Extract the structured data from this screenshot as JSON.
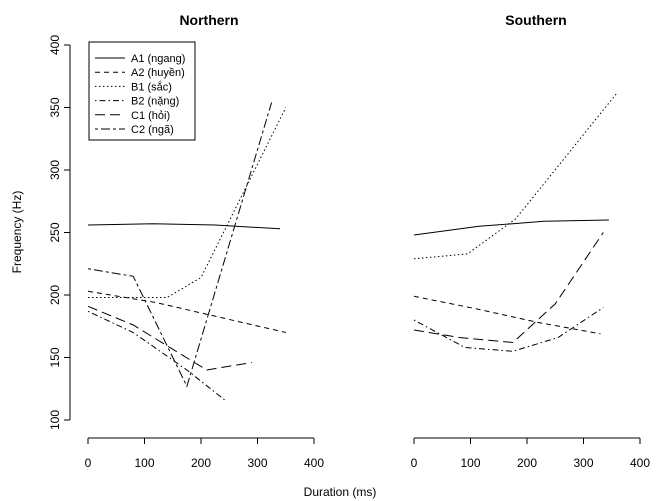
{
  "chart_data": {
    "type": "line",
    "xlabel": "Duration (ms)",
    "ylabel": "Frequency (Hz)",
    "xlim": [
      0,
      400
    ],
    "ylim": [
      100,
      400
    ],
    "xticks": [
      "0",
      "100",
      "200",
      "300",
      "400"
    ],
    "yticks": [
      "100",
      "150",
      "200",
      "250",
      "300",
      "350",
      "400"
    ],
    "grid": false,
    "legend_location": "top-left of first panel",
    "legend": [
      {
        "label": "A1 (ngang)",
        "dash": "solid"
      },
      {
        "label": "A2 (huyền)",
        "dash": "dashed"
      },
      {
        "label": "B1 (sắc)",
        "dash": "dotted"
      },
      {
        "label": "B2 (nặng)",
        "dash": "dotdash"
      },
      {
        "label": "C1 (hỏi)",
        "dash": "longdash"
      },
      {
        "label": "C2 (ngã)",
        "dash": "twodash"
      }
    ],
    "panels": [
      {
        "title": "Northern",
        "series": [
          {
            "name": "A1 (ngang)",
            "dash": "solid",
            "points": [
              [
                0,
                256
              ],
              [
                115,
                257
              ],
              [
                225,
                256
              ],
              [
                340,
                253
              ]
            ]
          },
          {
            "name": "A2 (huyền)",
            "dash": "dashed",
            "points": [
              [
                0,
                203
              ],
              [
                120,
                194
              ],
              [
                235,
                182
              ],
              [
                350,
                170
              ]
            ]
          },
          {
            "name": "B1 (sắc)",
            "dash": "dotted",
            "points": [
              [
                0,
                198
              ],
              [
                140,
                198
              ],
              [
                200,
                214
              ],
              [
                350,
                350
              ]
            ]
          },
          {
            "name": "B2 (nặng)",
            "dash": "dotdash",
            "points": [
              [
                0,
                187
              ],
              [
                80,
                170
              ],
              [
                175,
                140
              ],
              [
                245,
                115
              ]
            ]
          },
          {
            "name": "C1 (hỏi)",
            "dash": "longdash",
            "points": [
              [
                0,
                191
              ],
              [
                80,
                176
              ],
              [
                210,
                140
              ],
              [
                290,
                146
              ]
            ]
          },
          {
            "name": "C2 (ngã)",
            "dash": "twodash",
            "points": [
              [
                0,
                221
              ],
              [
                80,
                215
              ],
              [
                175,
                127
              ],
              [
                325,
                354
              ]
            ]
          }
        ]
      },
      {
        "title": "Southern",
        "series": [
          {
            "name": "A1 (ngang)",
            "dash": "solid",
            "points": [
              [
                0,
                248
              ],
              [
                115,
                255
              ],
              [
                230,
                259
              ],
              [
                345,
                260
              ]
            ]
          },
          {
            "name": "A2 (huyền)",
            "dash": "dashed",
            "points": [
              [
                0,
                199
              ],
              [
                110,
                189
              ],
              [
                220,
                178
              ],
              [
                330,
                169
              ]
            ]
          },
          {
            "name": "B1 (sắc)",
            "dash": "dotted",
            "points": [
              [
                0,
                229
              ],
              [
                95,
                233
              ],
              [
                180,
                261
              ],
              [
                360,
                362
              ]
            ]
          },
          {
            "name": "B2 (nặng)",
            "dash": "dotdash",
            "points": [
              [
                0,
                180
              ],
              [
                90,
                158
              ],
              [
                175,
                155
              ],
              [
                255,
                166
              ],
              [
                335,
                190
              ]
            ]
          },
          {
            "name": "C1 (hỏi)",
            "dash": "longdash",
            "points": [
              [
                0,
                172
              ],
              [
                80,
                166
              ],
              [
                175,
                162
              ],
              [
                250,
                193
              ],
              [
                335,
                250
              ]
            ]
          }
        ]
      }
    ]
  }
}
